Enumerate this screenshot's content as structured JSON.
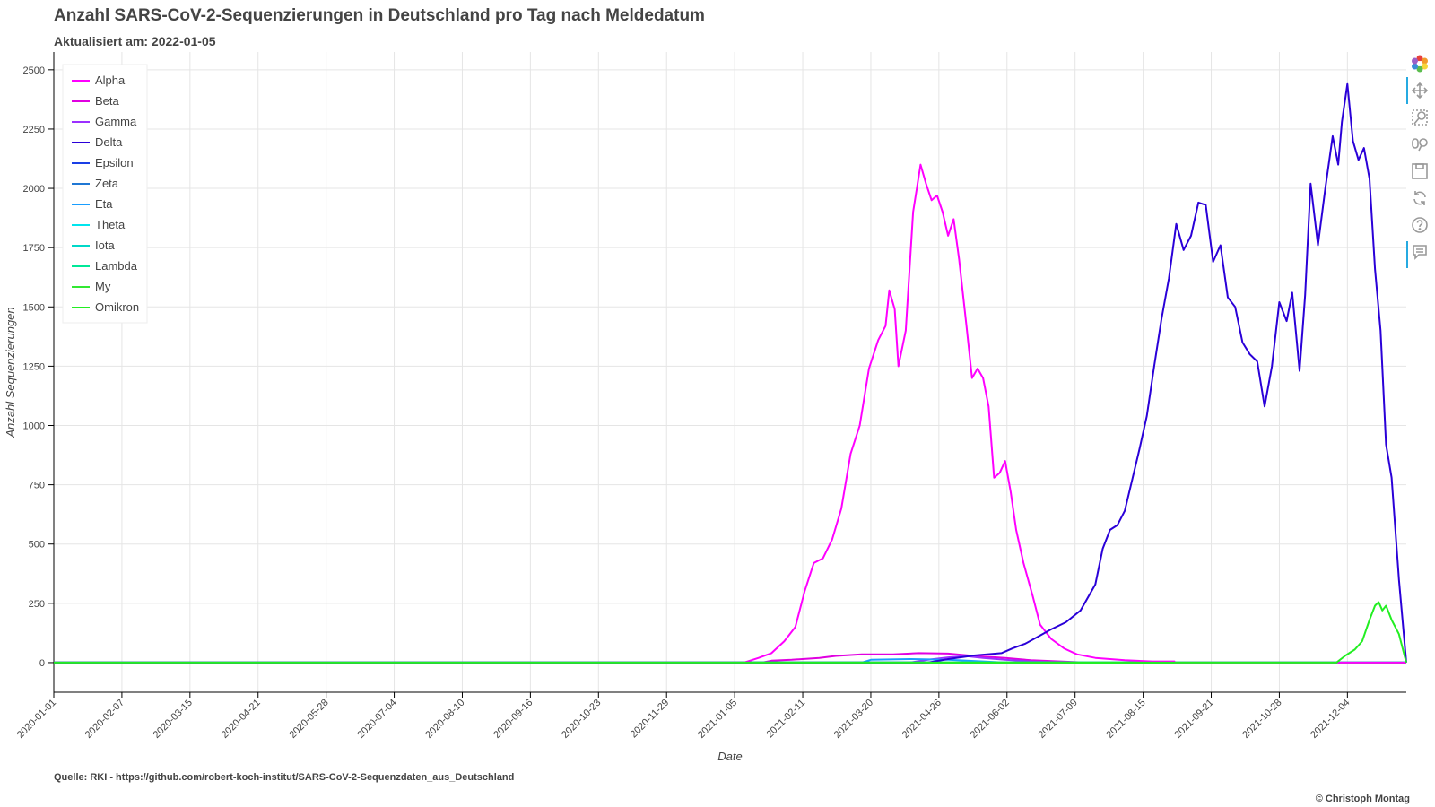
{
  "title": "Anzahl SARS-CoV-2-Sequenzierungen in Deutschland pro Tag nach Meldedatum",
  "subtitle": "Aktualisiert am: 2022-01-05",
  "source": "Quelle: RKI - https://github.com/robert-koch-institut/SARS-CoV-2-Sequenzdaten_aus_Deutschland",
  "copyright": "© Christoph Montag",
  "toolbar": [
    "bokeh-logo-icon",
    "pan-icon",
    "box-zoom-icon",
    "wheel-zoom-icon",
    "save-icon",
    "reset-icon",
    "help-icon",
    "hover-icon"
  ],
  "chart_data": {
    "type": "line",
    "title": "Anzahl SARS-CoV-2-Sequenzierungen in Deutschland pro Tag nach Meldedatum",
    "xlabel": "Date",
    "ylabel": "Anzahl Sequenzierungen",
    "x_range": [
      "2020-01-01",
      "2022-01-05"
    ],
    "ylim": [
      -125,
      2575
    ],
    "x_ticks": [
      "2020-01-01",
      "2020-02-07",
      "2020-03-15",
      "2020-04-21",
      "2020-05-28",
      "2020-07-04",
      "2020-08-10",
      "2020-09-16",
      "2020-10-23",
      "2020-11-29",
      "2021-01-05",
      "2021-02-11",
      "2021-03-20",
      "2021-04-26",
      "2021-06-02",
      "2021-07-09",
      "2021-08-15",
      "2021-09-21",
      "2021-10-28",
      "2021-12-04"
    ],
    "y_ticks": [
      0,
      250,
      500,
      750,
      1000,
      1250,
      1500,
      1750,
      2000,
      2250,
      2500
    ],
    "grid": true,
    "legend_position": "top-left",
    "series": [
      {
        "name": "Alpha",
        "color": "#ff00ff",
        "points": [
          [
            "2020-01-01",
            0
          ],
          [
            "2021-01-10",
            0
          ],
          [
            "2021-01-18",
            20
          ],
          [
            "2021-01-25",
            40
          ],
          [
            "2021-02-01",
            90
          ],
          [
            "2021-02-07",
            150
          ],
          [
            "2021-02-12",
            300
          ],
          [
            "2021-02-17",
            420
          ],
          [
            "2021-02-22",
            440
          ],
          [
            "2021-02-27",
            520
          ],
          [
            "2021-03-04",
            650
          ],
          [
            "2021-03-09",
            880
          ],
          [
            "2021-03-14",
            1000
          ],
          [
            "2021-03-19",
            1240
          ],
          [
            "2021-03-24",
            1360
          ],
          [
            "2021-03-28",
            1420
          ],
          [
            "2021-03-30",
            1570
          ],
          [
            "2021-04-02",
            1490
          ],
          [
            "2021-04-04",
            1250
          ],
          [
            "2021-04-08",
            1400
          ],
          [
            "2021-04-12",
            1900
          ],
          [
            "2021-04-16",
            2100
          ],
          [
            "2021-04-19",
            2020
          ],
          [
            "2021-04-22",
            1950
          ],
          [
            "2021-04-25",
            1970
          ],
          [
            "2021-04-28",
            1900
          ],
          [
            "2021-05-01",
            1800
          ],
          [
            "2021-05-04",
            1870
          ],
          [
            "2021-05-07",
            1700
          ],
          [
            "2021-05-11",
            1420
          ],
          [
            "2021-05-14",
            1200
          ],
          [
            "2021-05-17",
            1240
          ],
          [
            "2021-05-20",
            1200
          ],
          [
            "2021-05-23",
            1080
          ],
          [
            "2021-05-26",
            780
          ],
          [
            "2021-05-29",
            800
          ],
          [
            "2021-06-01",
            850
          ],
          [
            "2021-06-04",
            720
          ],
          [
            "2021-06-07",
            560
          ],
          [
            "2021-06-11",
            420
          ],
          [
            "2021-06-16",
            280
          ],
          [
            "2021-06-20",
            160
          ],
          [
            "2021-06-26",
            100
          ],
          [
            "2021-07-03",
            60
          ],
          [
            "2021-07-10",
            35
          ],
          [
            "2021-07-20",
            20
          ],
          [
            "2021-08-05",
            10
          ],
          [
            "2021-08-20",
            5
          ],
          [
            "2021-09-01",
            5
          ],
          [
            "2021-09-01",
            0
          ],
          [
            "2022-01-05",
            0
          ]
        ]
      },
      {
        "name": "Beta",
        "color": "#e000e0",
        "points": [
          [
            "2020-01-01",
            0
          ],
          [
            "2021-01-20",
            0
          ],
          [
            "2021-01-25",
            8
          ],
          [
            "2021-02-05",
            12
          ],
          [
            "2021-02-20",
            20
          ],
          [
            "2021-03-01",
            28
          ],
          [
            "2021-03-15",
            35
          ],
          [
            "2021-04-01",
            35
          ],
          [
            "2021-04-15",
            40
          ],
          [
            "2021-05-01",
            38
          ],
          [
            "2021-05-15",
            28
          ],
          [
            "2021-06-01",
            20
          ],
          [
            "2021-06-15",
            10
          ],
          [
            "2021-07-01",
            5
          ],
          [
            "2021-07-15",
            0
          ],
          [
            "2022-01-05",
            0
          ]
        ]
      },
      {
        "name": "Gamma",
        "color": "#9b30ff",
        "points": [
          [
            "2020-01-01",
            0
          ],
          [
            "2021-04-10",
            0
          ],
          [
            "2021-04-20",
            12
          ],
          [
            "2021-05-01",
            22
          ],
          [
            "2021-05-10",
            28
          ],
          [
            "2021-05-20",
            20
          ],
          [
            "2021-06-01",
            12
          ],
          [
            "2021-06-15",
            5
          ],
          [
            "2021-07-01",
            0
          ],
          [
            "2022-01-05",
            0
          ]
        ]
      },
      {
        "name": "Delta",
        "color": "#2a00d8",
        "points": [
          [
            "2020-01-01",
            0
          ],
          [
            "2021-04-20",
            0
          ],
          [
            "2021-05-01",
            15
          ],
          [
            "2021-05-15",
            30
          ],
          [
            "2021-05-30",
            40
          ],
          [
            "2021-06-05",
            60
          ],
          [
            "2021-06-12",
            80
          ],
          [
            "2021-06-19",
            110
          ],
          [
            "2021-06-26",
            140
          ],
          [
            "2021-07-04",
            170
          ],
          [
            "2021-07-12",
            220
          ],
          [
            "2021-07-20",
            330
          ],
          [
            "2021-07-24",
            480
          ],
          [
            "2021-07-28",
            560
          ],
          [
            "2021-08-01",
            580
          ],
          [
            "2021-08-05",
            640
          ],
          [
            "2021-08-09",
            770
          ],
          [
            "2021-08-13",
            900
          ],
          [
            "2021-08-17",
            1040
          ],
          [
            "2021-08-21",
            1250
          ],
          [
            "2021-08-25",
            1450
          ],
          [
            "2021-08-29",
            1620
          ],
          [
            "2021-09-02",
            1850
          ],
          [
            "2021-09-06",
            1740
          ],
          [
            "2021-09-10",
            1800
          ],
          [
            "2021-09-14",
            1940
          ],
          [
            "2021-09-18",
            1930
          ],
          [
            "2021-09-22",
            1690
          ],
          [
            "2021-09-26",
            1760
          ],
          [
            "2021-09-30",
            1540
          ],
          [
            "2021-10-04",
            1500
          ],
          [
            "2021-10-08",
            1350
          ],
          [
            "2021-10-12",
            1300
          ],
          [
            "2021-10-16",
            1270
          ],
          [
            "2021-10-20",
            1080
          ],
          [
            "2021-10-24",
            1250
          ],
          [
            "2021-10-28",
            1520
          ],
          [
            "2021-11-01",
            1440
          ],
          [
            "2021-11-04",
            1560
          ],
          [
            "2021-11-08",
            1230
          ],
          [
            "2021-11-11",
            1550
          ],
          [
            "2021-11-14",
            2020
          ],
          [
            "2021-11-18",
            1760
          ],
          [
            "2021-11-22",
            2000
          ],
          [
            "2021-11-26",
            2220
          ],
          [
            "2021-11-29",
            2100
          ],
          [
            "2021-12-01",
            2280
          ],
          [
            "2021-12-04",
            2440
          ],
          [
            "2021-12-07",
            2200
          ],
          [
            "2021-12-10",
            2120
          ],
          [
            "2021-12-13",
            2170
          ],
          [
            "2021-12-16",
            2040
          ],
          [
            "2021-12-19",
            1660
          ],
          [
            "2021-12-22",
            1400
          ],
          [
            "2021-12-25",
            920
          ],
          [
            "2021-12-28",
            780
          ],
          [
            "2022-01-01",
            350
          ],
          [
            "2022-01-05",
            0
          ]
        ]
      },
      {
        "name": "Epsilon",
        "color": "#1a3fe6",
        "points": [
          [
            "2020-01-01",
            0
          ],
          [
            "2022-01-05",
            0
          ]
        ]
      },
      {
        "name": "Zeta",
        "color": "#1f77d4",
        "points": [
          [
            "2020-01-01",
            0
          ],
          [
            "2022-01-05",
            0
          ]
        ]
      },
      {
        "name": "Eta",
        "color": "#1a9eff",
        "points": [
          [
            "2020-01-01",
            0
          ],
          [
            "2021-03-15",
            0
          ],
          [
            "2021-03-20",
            12
          ],
          [
            "2021-04-10",
            15
          ],
          [
            "2021-05-01",
            12
          ],
          [
            "2021-05-20",
            5
          ],
          [
            "2021-06-01",
            0
          ],
          [
            "2022-01-05",
            0
          ]
        ]
      },
      {
        "name": "Theta",
        "color": "#00e5ee",
        "points": [
          [
            "2020-01-01",
            0
          ],
          [
            "2022-01-05",
            0
          ]
        ]
      },
      {
        "name": "Iota",
        "color": "#00d8c8",
        "points": [
          [
            "2020-01-01",
            0
          ],
          [
            "2022-01-05",
            0
          ]
        ]
      },
      {
        "name": "Lambda",
        "color": "#00e898",
        "points": [
          [
            "2020-01-01",
            0
          ],
          [
            "2022-01-05",
            0
          ]
        ]
      },
      {
        "name": "My",
        "color": "#32e832",
        "points": [
          [
            "2020-01-01",
            0
          ],
          [
            "2022-01-05",
            0
          ]
        ]
      },
      {
        "name": "Omikron",
        "color": "#22ee22",
        "points": [
          [
            "2020-01-01",
            0
          ],
          [
            "2021-11-28",
            0
          ],
          [
            "2021-12-03",
            30
          ],
          [
            "2021-12-08",
            55
          ],
          [
            "2021-12-12",
            90
          ],
          [
            "2021-12-16",
            180
          ],
          [
            "2021-12-19",
            240
          ],
          [
            "2021-12-21",
            255
          ],
          [
            "2021-12-23",
            220
          ],
          [
            "2021-12-25",
            240
          ],
          [
            "2021-12-28",
            180
          ],
          [
            "2022-01-01",
            120
          ],
          [
            "2022-01-05",
            0
          ]
        ]
      }
    ]
  }
}
